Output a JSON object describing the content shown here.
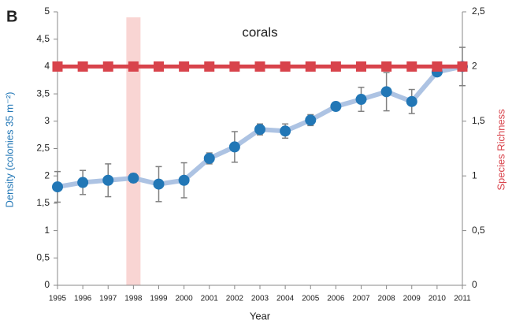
{
  "chart_data": {
    "type": "line",
    "panel_label": "B",
    "annotation": "corals",
    "x_label": "Year",
    "y_label": "Density (colonies 35 m⁻²)",
    "y2_label": "Species Richness",
    "x": [
      1995,
      1996,
      1997,
      1998,
      1999,
      2000,
      2001,
      2002,
      2003,
      2004,
      2005,
      2006,
      2007,
      2008,
      2009,
      2010,
      2011
    ],
    "highlight_x": 1998,
    "highlight_color": "#f9d5d3",
    "series": [
      {
        "name": "Density",
        "color": "#2277b6",
        "line_color": "#adc3e3",
        "values": [
          1.8,
          1.88,
          1.92,
          1.96,
          1.85,
          1.92,
          2.32,
          2.53,
          2.85,
          2.82,
          3.02,
          3.27,
          3.4,
          3.54,
          3.36,
          3.9,
          4.0
        ],
        "errors": [
          0.28,
          0.22,
          0.3,
          0.08,
          0.32,
          0.32,
          0.1,
          0.28,
          0.1,
          0.13,
          0.1,
          0.0,
          0.22,
          0.35,
          0.22,
          0.05,
          0.35
        ],
        "error_color": "#808080"
      },
      {
        "name": "Species Richness",
        "color": "#d8434b",
        "axis": "y2",
        "values": [
          2,
          2,
          2,
          2,
          2,
          2,
          2,
          2,
          2,
          2,
          2,
          2,
          2,
          2,
          2,
          2,
          2
        ]
      }
    ],
    "xlim": [
      1995,
      2011
    ],
    "xticks": [
      1995,
      1996,
      1997,
      1998,
      1999,
      2000,
      2001,
      2002,
      2003,
      2004,
      2005,
      2006,
      2007,
      2008,
      2009,
      2010,
      2011
    ],
    "ylim": [
      0,
      5
    ],
    "yticks": [
      0,
      {
        "value": 0.5,
        "label": "0,5"
      },
      1,
      {
        "value": 1.5,
        "label": "1,5"
      },
      2,
      {
        "value": 2.5,
        "label": "2,5"
      },
      3,
      {
        "value": 3.5,
        "label": "3,5"
      },
      4,
      {
        "value": 4.5,
        "label": "4,5"
      },
      5
    ],
    "y2lim": [
      0,
      2.5
    ],
    "y2ticks": [
      0,
      {
        "value": 0.5,
        "label": "0,5"
      },
      1,
      {
        "value": 1.5,
        "label": "1,5"
      },
      2,
      {
        "value": 2.5,
        "label": "2,5"
      }
    ]
  }
}
